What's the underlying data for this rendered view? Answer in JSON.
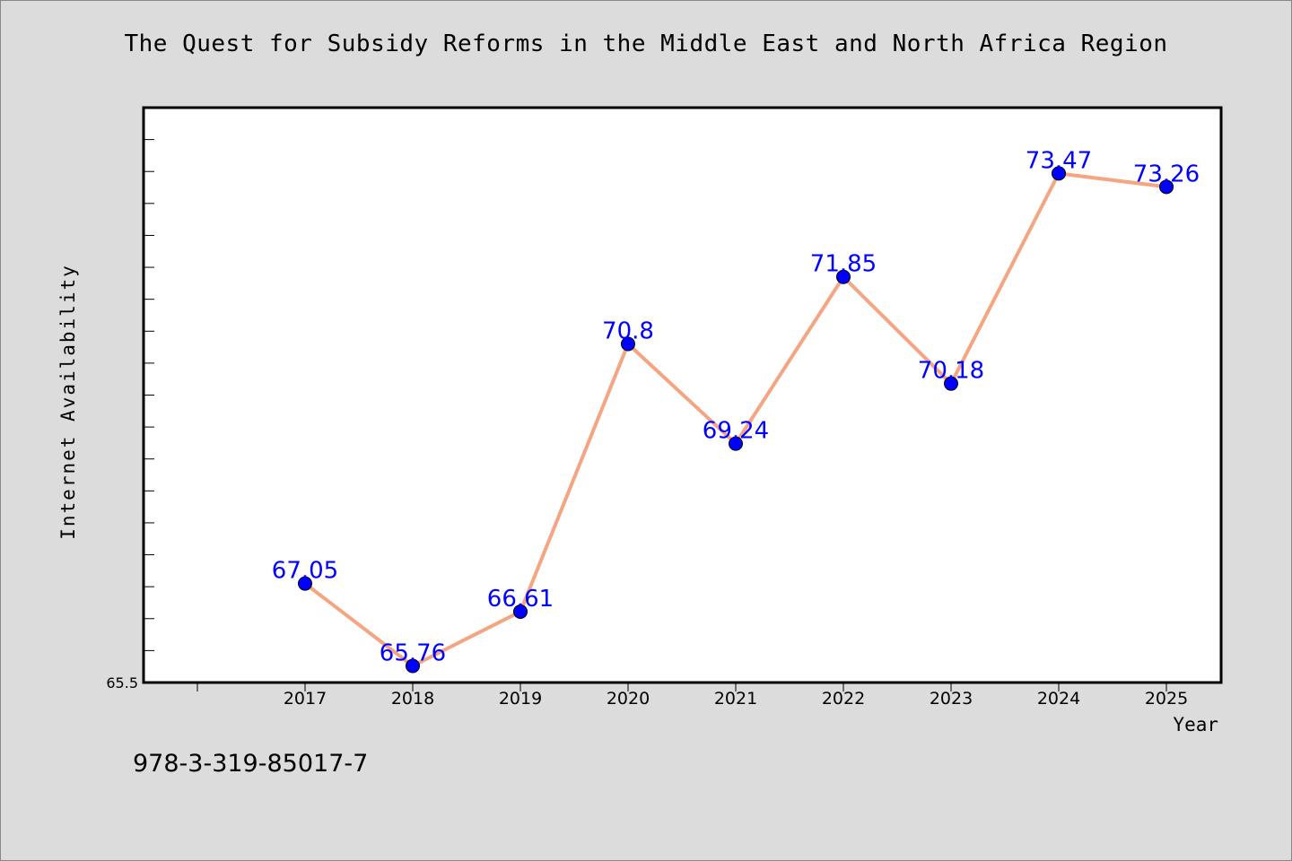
{
  "chart_data": {
    "type": "line",
    "title": "The Quest for Subsidy Reforms in the Middle East and North Africa Region",
    "xlabel": "Year",
    "ylabel": "Internet Availability",
    "categories": [
      "2017",
      "2018",
      "2019",
      "2020",
      "2021",
      "2022",
      "2023",
      "2024",
      "2025"
    ],
    "series": [
      {
        "values": [
          67.05,
          65.76,
          66.61,
          70.8,
          69.24,
          71.85,
          70.18,
          73.47,
          73.26
        ]
      }
    ],
    "data_labels": [
      "67.05",
      "65.76",
      "66.61",
      "70.8",
      "69.24",
      "71.85",
      "70.18",
      "73.47",
      "73.26"
    ],
    "ylim": [
      65.5,
      74.5
    ],
    "y_tick_labels": [
      "65.5"
    ],
    "grid": false,
    "legend": "none",
    "colors": {
      "line": "#f4a582",
      "marker": "#0000ff",
      "label": "#0000ff",
      "background": "#dcdcdc",
      "plot_bg": "#ffffff"
    }
  },
  "footer": {
    "code": "978-3-319-85017-7"
  }
}
